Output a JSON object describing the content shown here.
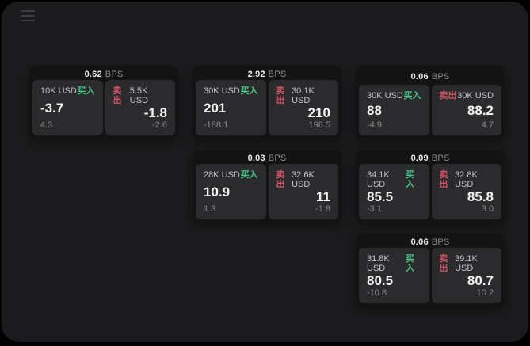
{
  "colors": {
    "buy_green": "#45c585",
    "sell_red": "#d55568",
    "window_bg": "#1b1b1d",
    "card_bg": "#131314",
    "panel_bg": "#2b2b2d"
  },
  "labels": {
    "bps": "BPS",
    "buy": "买入",
    "sell": "卖出"
  },
  "menu": {
    "icon": "hamburger-menu-icon"
  },
  "cards": [
    {
      "row": 1,
      "col": 1,
      "bps": "0.62",
      "buy": {
        "size": "10K USD",
        "value": "-3.7",
        "change": "4.3"
      },
      "sell": {
        "size": "5.5K USD",
        "value": "-1.8",
        "change": "-2.6"
      }
    },
    {
      "row": 1,
      "col": 2,
      "bps": "2.92",
      "buy": {
        "size": "30K USD",
        "value": "201",
        "change": "-188.1"
      },
      "sell": {
        "size": "30.1K USD",
        "value": "210",
        "change": "196.5"
      }
    },
    {
      "row": 1,
      "col": 3,
      "bps": "0.06",
      "buy": {
        "size": "30K USD",
        "value": "88",
        "change": "-4.9"
      },
      "sell": {
        "size": "30K USD",
        "value": "88.2",
        "change": "4.7"
      }
    },
    {
      "row": 2,
      "col": 2,
      "bps": "0.03",
      "buy": {
        "size": "28K USD",
        "value": "10.9",
        "change": "1.3"
      },
      "sell": {
        "size": "32.6K USD",
        "value": "11",
        "change": "-1.8"
      }
    },
    {
      "row": 2,
      "col": 3,
      "bps": "0.09",
      "buy": {
        "size": "34.1K USD",
        "value": "85.5",
        "change": "-3.1"
      },
      "sell": {
        "size": "32.8K USD",
        "value": "85.8",
        "change": "3.0"
      }
    },
    {
      "row": 3,
      "col": 3,
      "bps": "0.06",
      "buy": {
        "size": "31.8K USD",
        "value": "80.5",
        "change": "-10.8"
      },
      "sell": {
        "size": "39.1K USD",
        "value": "80.7",
        "change": "10.2"
      }
    }
  ]
}
